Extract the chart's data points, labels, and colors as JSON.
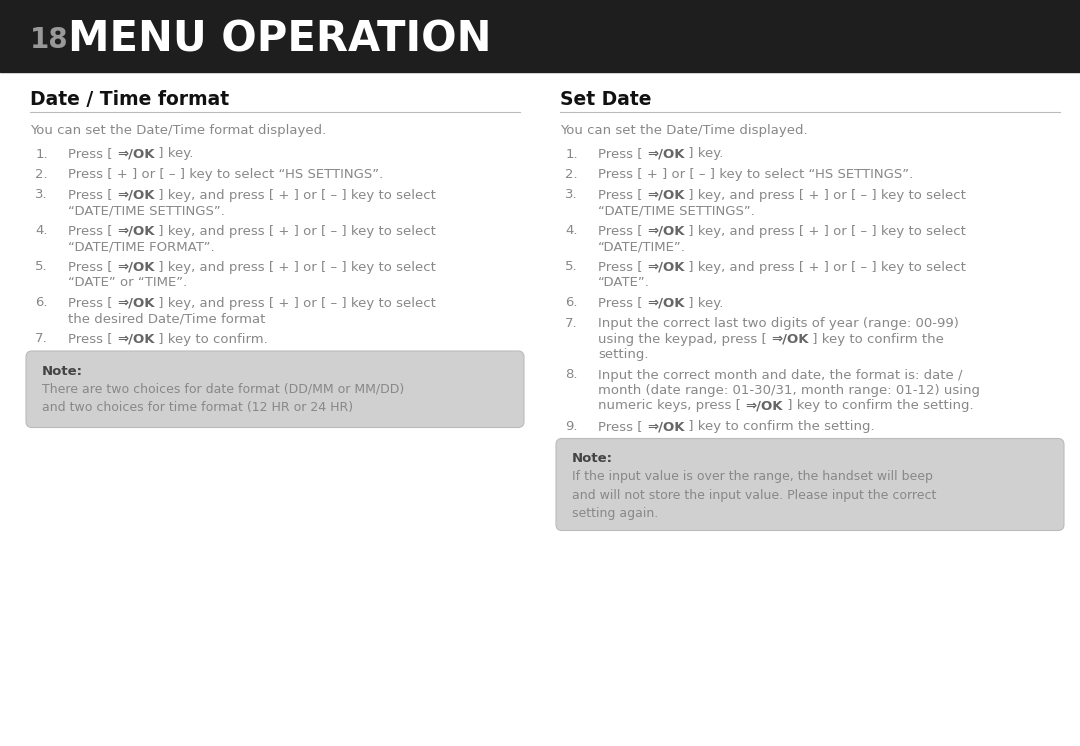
{
  "bg_color": "#ffffff",
  "header_bg": "#1e1e1e",
  "header_text_color": "#ffffff",
  "header_number": "18",
  "header_number_color": "#999999",
  "header_title": "MENU OPERATION",
  "section1_title": "Date / Time format",
  "section2_title": "Set Date",
  "section_title_color": "#111111",
  "divider_color": "#bbbbbb",
  "body_text_color": "#888888",
  "ok_bold_color": "#666666",
  "note_bg": "#d0d0d0",
  "note_border": "#bbbbbb",
  "left_intro": "You can set the Date/Time format displayed.",
  "left_steps": [
    [
      "Press [ ",
      "⇒/OK",
      " ] key."
    ],
    [
      "Press [ + ] or [ – ] key to select “HS SETTINGS”."
    ],
    [
      "Press [ ",
      "⇒/OK",
      " ] key, and press [ + ] or [ – ] key to select\n“DATE/TIME SETTINGS”."
    ],
    [
      "Press [ ",
      "⇒/OK",
      " ] key, and press [ + ] or [ – ] key to select\n“DATE/TIME FORMAT”."
    ],
    [
      "Press [ ",
      "⇒/OK",
      " ] key, and press [ + ] or [ – ] key to select\n“DATE” or “TIME”."
    ],
    [
      "Press [ ",
      "⇒/OK",
      " ] key, and press [ + ] or [ – ] key to select\nthe desired Date/Time format"
    ],
    [
      "Press [ ",
      "⇒/OK",
      " ] key to confirm."
    ]
  ],
  "left_note_title": "Note:",
  "left_note_body": "There are two choices for date format (DD/MM or MM/DD)\nand two choices for time format (12 HR or 24 HR)",
  "right_intro": "You can set the Date/Time displayed.",
  "right_steps": [
    [
      "Press [ ",
      "⇒/OK",
      " ] key."
    ],
    [
      "Press [ + ] or [ – ] key to select “HS SETTINGS”."
    ],
    [
      "Press [ ",
      "⇒/OK",
      " ] key, and press [ + ] or [ – ] key to select\n“DATE/TIME SETTINGS”."
    ],
    [
      "Press [ ",
      "⇒/OK",
      " ] key, and press [ + ] or [ – ] key to select\n“DATE/TIME”."
    ],
    [
      "Press [ ",
      "⇒/OK",
      " ] key, and press [ + ] or [ – ] key to select\n“DATE”."
    ],
    [
      "Press [ ",
      "⇒/OK",
      " ] key."
    ],
    [
      "Input the correct last two digits of year (range: 00-99)\nusing the keypad, press [ ",
      "⇒/OK",
      " ] key to confirm the\nsetting."
    ],
    [
      "Input the correct month and date, the format is: date /\nmonth (date range: 01-30/31, month range: 01-12) using\nnumeric keys, press [ ",
      "⇒/OK",
      " ] key to confirm the setting."
    ],
    [
      "Press [ ",
      "⇒/OK",
      " ] key to confirm the setting."
    ]
  ],
  "right_note_title": "Note:",
  "right_note_body": "If the input value is over the range, the handset will beep\nand will not store the input value. Please input the correct\nsetting again.",
  "fig_width": 10.8,
  "fig_height": 7.46,
  "dpi": 100
}
